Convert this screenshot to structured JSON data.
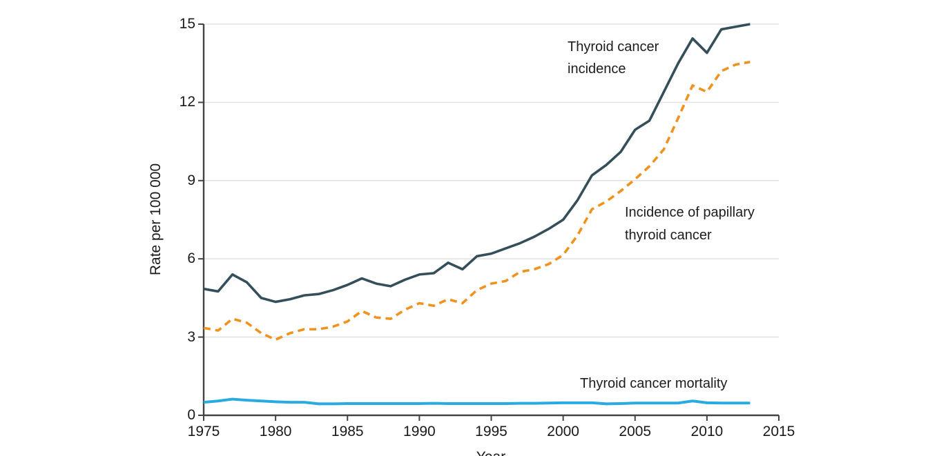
{
  "figure": {
    "background": "#ffffff",
    "grid_color": "#e3e3e3",
    "axis_color": "#424242",
    "text_color": "#1a1a1a"
  },
  "y_axis": {
    "label": "Rate per 100 000",
    "ticks": [
      "0",
      "3",
      "6",
      "9",
      "12",
      "15"
    ],
    "tick_values": [
      0,
      3,
      6,
      9,
      12,
      15
    ]
  },
  "x_axis": {
    "label": "Year",
    "ticks": [
      "1975",
      "1980",
      "1985",
      "1990",
      "1995",
      "2000",
      "2005",
      "2010",
      "2015"
    ],
    "tick_values": [
      1975,
      1980,
      1985,
      1990,
      1995,
      2000,
      2005,
      2010,
      2015
    ]
  },
  "annotations": {
    "incidence": {
      "line1": "Thyroid cancer",
      "line2": "incidence"
    },
    "papillary": {
      "line1": "Incidence of papillary",
      "line2": "thyroid cancer"
    },
    "mortality": {
      "line1": "Thyroid cancer mortality"
    }
  },
  "chart_data": {
    "type": "line",
    "title": "",
    "xlabel": "Year",
    "ylabel": "Rate per 100 000",
    "xlim": [
      1975,
      2015
    ],
    "ylim": [
      0,
      15
    ],
    "grid": "horizontal gridlines at 3, 6, 9, 12, 15",
    "legend_position": "inline text annotations next to lines",
    "x": [
      1975,
      1976,
      1977,
      1978,
      1979,
      1980,
      1981,
      1982,
      1983,
      1984,
      1985,
      1986,
      1987,
      1988,
      1989,
      1990,
      1991,
      1992,
      1993,
      1994,
      1995,
      1996,
      1997,
      1998,
      1999,
      2000,
      2001,
      2002,
      2003,
      2004,
      2005,
      2006,
      2007,
      2008,
      2009,
      2010,
      2011,
      2012,
      2013
    ],
    "series": [
      {
        "name": "Thyroid cancer incidence",
        "color": "#344f5a",
        "style": "solid",
        "width": 3.6,
        "values": [
          4.85,
          4.75,
          5.4,
          5.1,
          4.5,
          4.35,
          4.45,
          4.6,
          4.65,
          4.8,
          5.0,
          5.25,
          5.05,
          4.95,
          5.2,
          5.4,
          5.45,
          5.85,
          5.6,
          6.1,
          6.2,
          6.4,
          6.6,
          6.85,
          7.15,
          7.5,
          8.25,
          9.2,
          9.6,
          10.1,
          10.95,
          11.3,
          12.4,
          13.5,
          14.45,
          13.9,
          14.8,
          14.9,
          15.0
        ]
      },
      {
        "name": "Incidence of papillary thyroid cancer",
        "color": "#f0931e",
        "style": "dashed",
        "width": 3.6,
        "values": [
          3.35,
          3.25,
          3.7,
          3.55,
          3.15,
          2.9,
          3.15,
          3.3,
          3.3,
          3.4,
          3.6,
          4.0,
          3.75,
          3.7,
          4.05,
          4.3,
          4.2,
          4.45,
          4.3,
          4.8,
          5.05,
          5.15,
          5.5,
          5.6,
          5.8,
          6.15,
          6.9,
          7.9,
          8.2,
          8.6,
          9.05,
          9.55,
          10.2,
          11.4,
          12.65,
          12.4,
          13.2,
          13.45,
          13.55
        ]
      },
      {
        "name": "Thyroid cancer mortality",
        "color": "#29abe2",
        "style": "solid",
        "width": 4,
        "values": [
          0.5,
          0.55,
          0.62,
          0.58,
          0.55,
          0.52,
          0.5,
          0.5,
          0.44,
          0.44,
          0.45,
          0.45,
          0.45,
          0.45,
          0.45,
          0.45,
          0.46,
          0.45,
          0.45,
          0.45,
          0.45,
          0.45,
          0.46,
          0.46,
          0.47,
          0.48,
          0.48,
          0.48,
          0.44,
          0.45,
          0.47,
          0.47,
          0.47,
          0.47,
          0.55,
          0.48,
          0.47,
          0.47,
          0.47
        ]
      }
    ]
  }
}
